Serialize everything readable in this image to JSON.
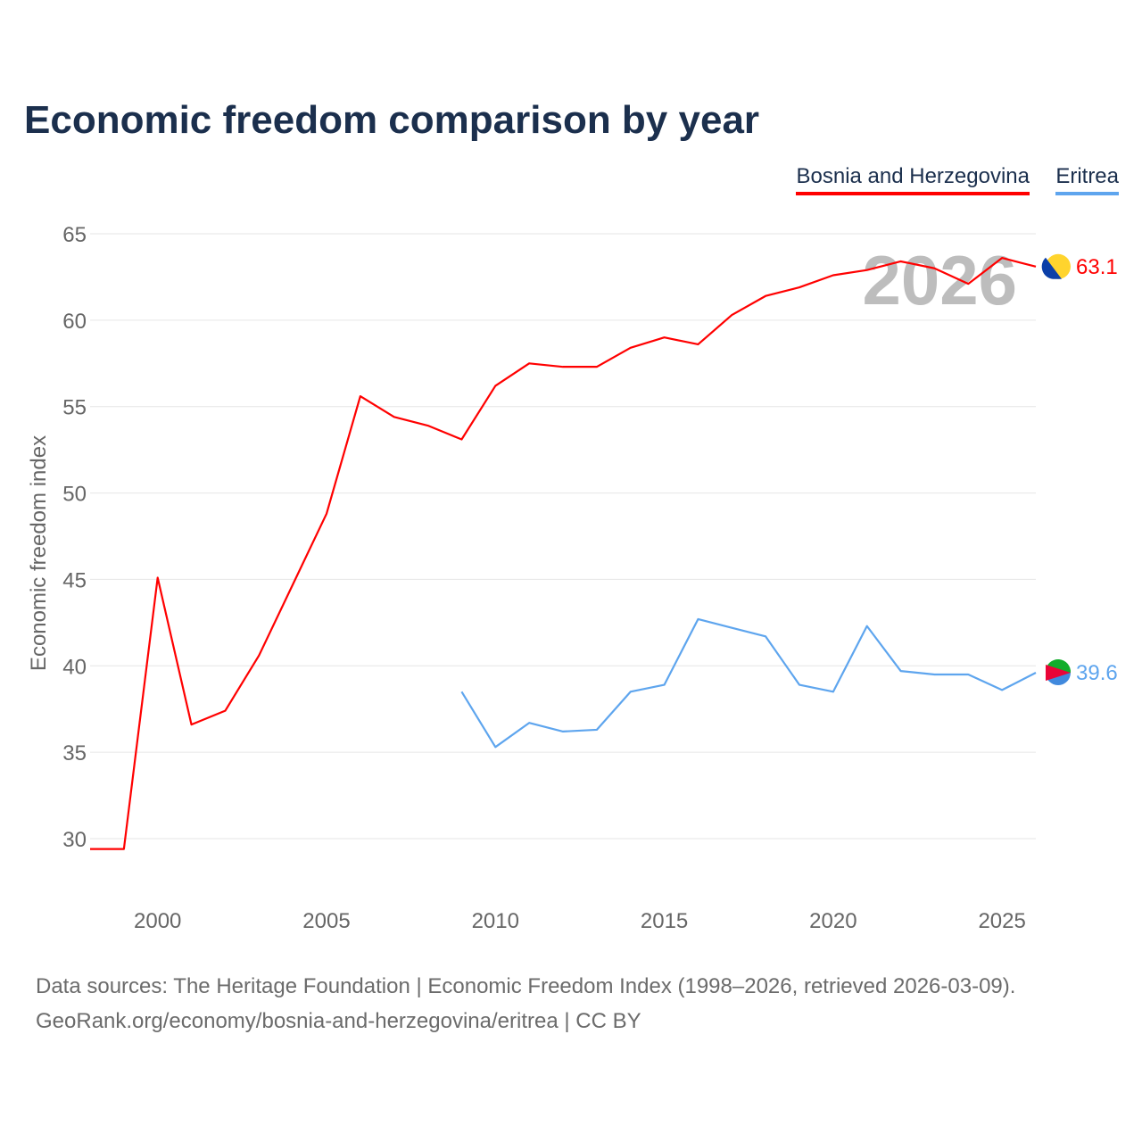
{
  "chart_data": {
    "type": "line",
    "title": "Economic freedom comparison by year",
    "xlabel": "",
    "ylabel": "Economic freedom index",
    "xlim": [
      1998,
      2026
    ],
    "ylim": [
      27,
      66
    ],
    "x_ticks": [
      2000,
      2005,
      2010,
      2015,
      2020,
      2025
    ],
    "y_ticks": [
      30,
      35,
      40,
      45,
      50,
      55,
      60,
      65
    ],
    "grid": true,
    "legend_position": "top-right",
    "year_watermark": "2026",
    "series": [
      {
        "name": "Bosnia and Herzegovina",
        "color": "#ff0000",
        "end_label": "63.1",
        "x": [
          1998,
          1999,
          2000,
          2001,
          2002,
          2003,
          2004,
          2005,
          2006,
          2007,
          2008,
          2009,
          2010,
          2011,
          2012,
          2013,
          2014,
          2015,
          2016,
          2017,
          2018,
          2019,
          2020,
          2021,
          2022,
          2023,
          2024,
          2025,
          2026
        ],
        "values": [
          29.4,
          29.4,
          45.1,
          36.6,
          37.4,
          40.6,
          44.7,
          48.8,
          55.6,
          54.4,
          53.9,
          53.1,
          56.2,
          57.5,
          57.3,
          57.3,
          58.4,
          59.0,
          58.6,
          60.3,
          61.4,
          61.9,
          62.6,
          62.9,
          63.4,
          63.0,
          62.1,
          63.6,
          63.1
        ]
      },
      {
        "name": "Eritrea",
        "color": "#5ea5ee",
        "end_label": "39.6",
        "x": [
          2009,
          2010,
          2011,
          2012,
          2013,
          2014,
          2015,
          2016,
          2017,
          2018,
          2019,
          2020,
          2021,
          2022,
          2023,
          2024,
          2025,
          2026
        ],
        "values": [
          38.5,
          35.3,
          36.7,
          36.2,
          36.3,
          38.5,
          38.9,
          42.7,
          42.2,
          41.7,
          38.9,
          38.5,
          42.3,
          39.7,
          39.5,
          39.5,
          38.6,
          39.6
        ]
      }
    ]
  },
  "source_line1": "Data sources: The Heritage Foundation | Economic Freedom Index (1998–2026, retrieved 2026-03-09).",
  "source_line2": "GeoRank.org/economy/bosnia-and-herzegovina/eritrea | CC BY"
}
